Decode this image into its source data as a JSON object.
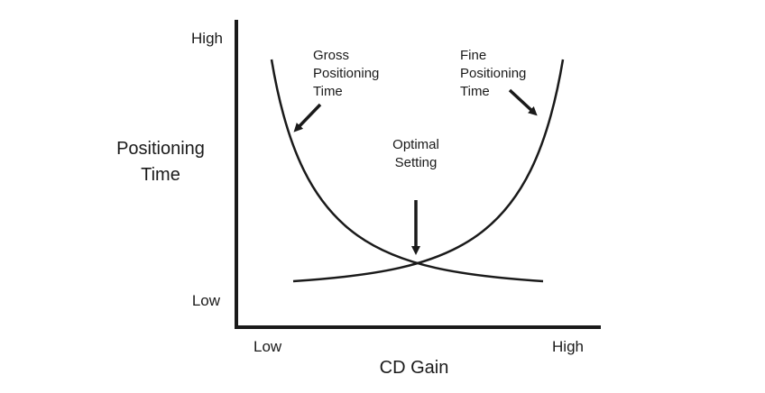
{
  "diagram": {
    "y_axis": {
      "label_lines": [
        "Positioning",
        "Time"
      ],
      "high": "High",
      "low": "Low"
    },
    "x_axis": {
      "label": "CD Gain",
      "low": "Low",
      "high": "High"
    },
    "curves": [
      {
        "id": "gross",
        "label_lines": [
          "Gross",
          "Positioning",
          "Time"
        ]
      },
      {
        "id": "fine",
        "label_lines": [
          "Fine",
          "Positioning",
          "Time"
        ]
      }
    ],
    "optimum": {
      "label_lines": [
        "Optimal",
        "Setting"
      ]
    },
    "colors": {
      "ink": "#1a1a1a",
      "background": "#ffffff"
    }
  }
}
